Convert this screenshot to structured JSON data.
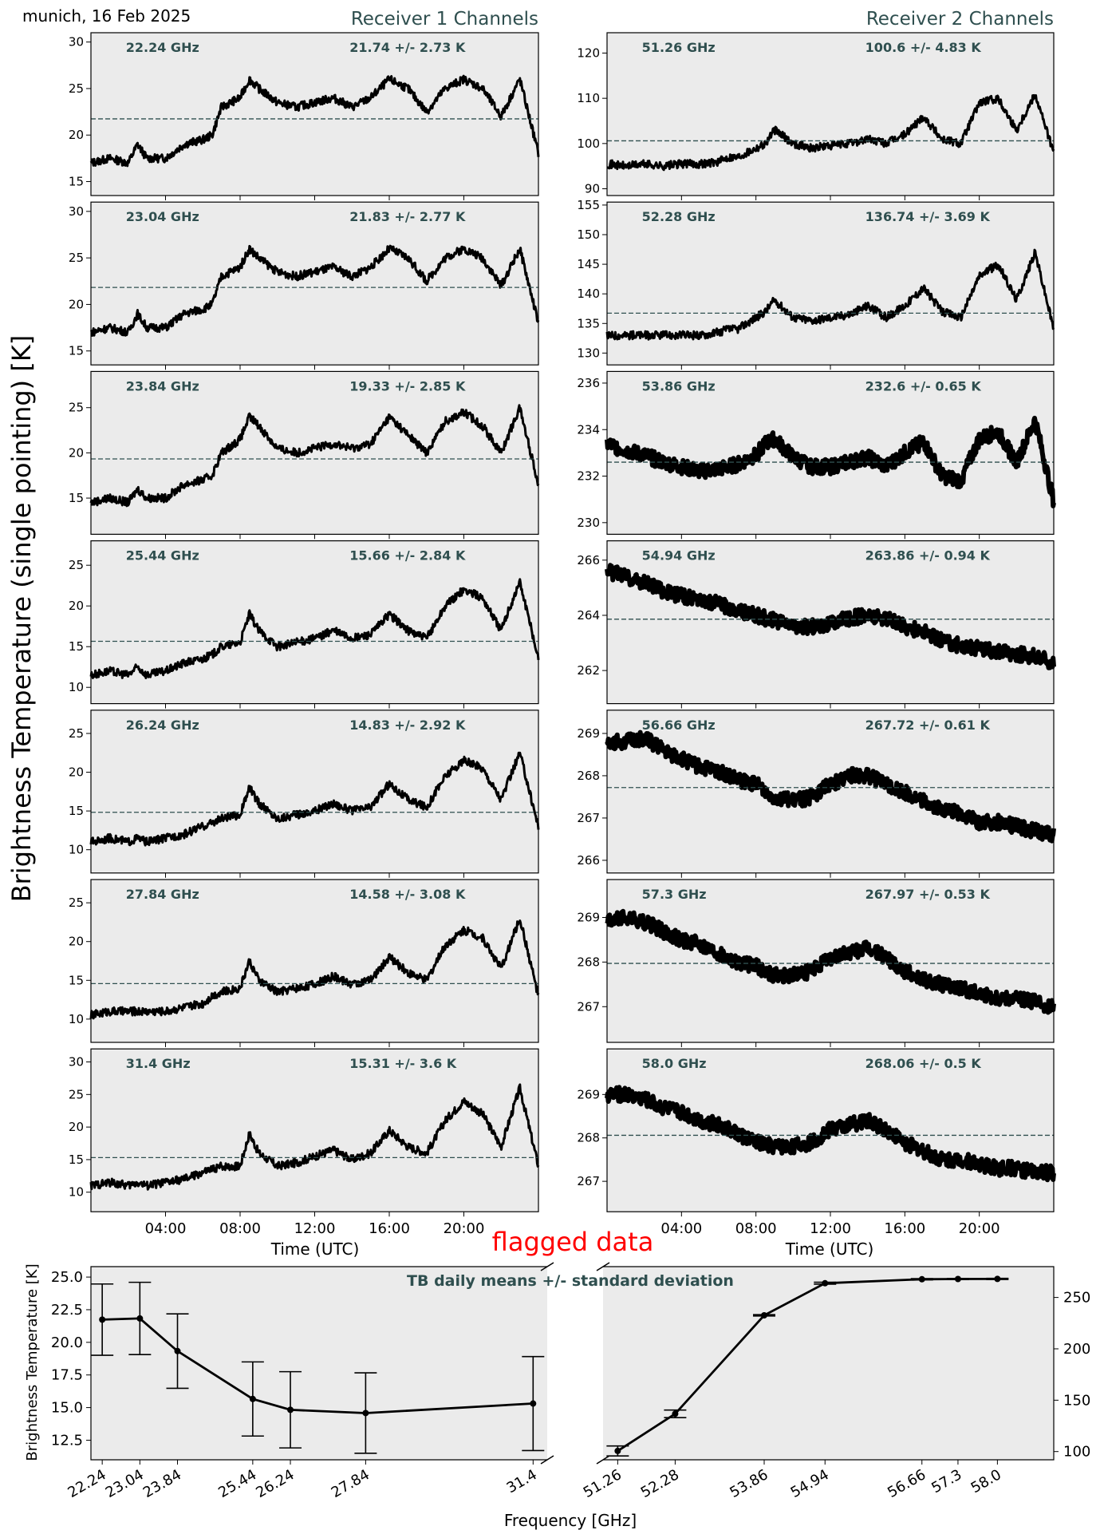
{
  "figure": {
    "header": "munich, 16 Feb 2025",
    "receiver1_title": "Receiver 1 Channels",
    "receiver2_title": "Receiver 2 Channels",
    "ylabel": "Brightness Temperature (single pointing) [K]",
    "time_xlabel": "Time (UTC)",
    "time_ticks": [
      "04:00",
      "08:00",
      "12:00",
      "16:00",
      "20:00"
    ],
    "flag_text": "flagged data",
    "summary_title": "TB daily means +/- standard deviation",
    "summary_ylabel": "Brightness Temperature [K]",
    "summary_xlabel": "Frequency [GHz]"
  },
  "colors": {
    "panel_bg": "#ebebeb",
    "series": "#000000",
    "mean_line": "#2f4f4f",
    "annotation": "#2f4f4f",
    "title": "#2f4f4f",
    "flag": "#ff0000"
  },
  "chart_data": [
    {
      "type": "line",
      "receiver": 1,
      "title": "22.24 GHz",
      "stat_label": "21.74 +/- 2.73 K",
      "mean": 21.74,
      "std": 2.73,
      "ylim": [
        13.5,
        31
      ],
      "yticks": [
        15,
        20,
        25,
        30
      ],
      "xlim": [
        0,
        24
      ],
      "series": {
        "x": [
          0,
          1,
          2,
          2.5,
          3,
          4,
          5,
          6,
          6.5,
          7,
          8,
          8.5,
          9,
          10,
          11,
          12,
          13,
          14,
          15,
          16,
          17,
          18,
          19,
          20,
          21,
          22,
          23,
          24
        ],
        "y": [
          17,
          17.5,
          17,
          19,
          17.5,
          17.5,
          19,
          19.5,
          20,
          23,
          24,
          26,
          25,
          23.5,
          23,
          23.5,
          24,
          23,
          24,
          26,
          25,
          22.5,
          25,
          26,
          25,
          22,
          26,
          18
        ]
      }
    },
    {
      "type": "line",
      "receiver": 1,
      "title": "23.04 GHz",
      "stat_label": "21.83 +/- 2.77 K",
      "mean": 21.83,
      "std": 2.77,
      "ylim": [
        13.5,
        31
      ],
      "yticks": [
        15,
        20,
        25,
        30
      ],
      "xlim": [
        0,
        24
      ],
      "series": {
        "x": [
          0,
          1,
          2,
          2.5,
          3,
          4,
          5,
          6,
          6.5,
          7,
          8,
          8.5,
          9,
          10,
          11,
          12,
          13,
          14,
          15,
          16,
          17,
          18,
          19,
          20,
          21,
          22,
          23,
          24
        ],
        "y": [
          17,
          17.5,
          17,
          19,
          17.5,
          17.5,
          19,
          19.5,
          20,
          23,
          24,
          26,
          25,
          23.5,
          23,
          23.5,
          24,
          23,
          24,
          26,
          25,
          22.5,
          25,
          26,
          25,
          22,
          26,
          18
        ]
      }
    },
    {
      "type": "line",
      "receiver": 1,
      "title": "23.84 GHz",
      "stat_label": "19.33 +/- 2.85 K",
      "mean": 19.33,
      "std": 2.85,
      "ylim": [
        11,
        29
      ],
      "yticks": [
        15,
        20,
        25
      ],
      "xlim": [
        0,
        24
      ],
      "series": {
        "x": [
          0,
          1,
          2,
          2.5,
          3,
          4,
          5,
          6,
          6.5,
          7,
          8,
          8.5,
          9,
          10,
          11,
          12,
          13,
          14,
          15,
          16,
          17,
          18,
          19,
          20,
          21,
          22,
          23,
          24
        ],
        "y": [
          14.5,
          15,
          14.5,
          16,
          15,
          15,
          16.5,
          17,
          17.5,
          20,
          21.5,
          24,
          23,
          20.5,
          20,
          20.5,
          21,
          20.5,
          21,
          24,
          22,
          20,
          23.5,
          24.5,
          23,
          20,
          25,
          16.5
        ]
      }
    },
    {
      "type": "line",
      "receiver": 1,
      "title": "25.44 GHz",
      "stat_label": "15.66 +/- 2.84 K",
      "mean": 15.66,
      "std": 2.84,
      "ylim": [
        8,
        28
      ],
      "yticks": [
        10,
        15,
        20,
        25
      ],
      "xlim": [
        0,
        24
      ],
      "series": {
        "x": [
          0,
          1,
          2,
          2.5,
          3,
          4,
          5,
          6,
          6.5,
          7,
          8,
          8.5,
          9,
          10,
          11,
          12,
          13,
          14,
          15,
          16,
          17,
          18,
          19,
          20,
          21,
          22,
          23,
          24
        ],
        "y": [
          11.5,
          12,
          11.5,
          12.5,
          11.5,
          12,
          13,
          13.5,
          14,
          15,
          15.5,
          19,
          17,
          15,
          15.5,
          16,
          17,
          16,
          16.5,
          19,
          17,
          16,
          20,
          22,
          21,
          17,
          23,
          13.5
        ]
      }
    },
    {
      "type": "line",
      "receiver": 1,
      "title": "26.24 GHz",
      "stat_label": "14.83 +/- 2.92 K",
      "mean": 14.83,
      "std": 2.92,
      "ylim": [
        7,
        28
      ],
      "yticks": [
        10,
        15,
        20,
        25
      ],
      "xlim": [
        0,
        24
      ],
      "series": {
        "x": [
          0,
          1,
          2,
          2.5,
          3,
          4,
          5,
          6,
          6.5,
          7,
          8,
          8.5,
          9,
          10,
          11,
          12,
          13,
          14,
          15,
          16,
          17,
          18,
          19,
          20,
          21,
          22,
          23,
          24
        ],
        "y": [
          11,
          11.5,
          11,
          11.5,
          11,
          11.5,
          12,
          13,
          13.5,
          14,
          14.5,
          18,
          16,
          14,
          14.5,
          15,
          16,
          15,
          15.5,
          18.5,
          16.5,
          15.5,
          19.5,
          21.5,
          20.5,
          16.5,
          22.5,
          13
        ]
      }
    },
    {
      "type": "line",
      "receiver": 1,
      "title": "27.84 GHz",
      "stat_label": "14.58 +/- 3.08 K",
      "mean": 14.58,
      "std": 3.08,
      "ylim": [
        7,
        28
      ],
      "yticks": [
        10,
        15,
        20,
        25
      ],
      "xlim": [
        0,
        24
      ],
      "series": {
        "x": [
          0,
          1,
          2,
          2.5,
          3,
          4,
          5,
          6,
          6.5,
          7,
          8,
          8.5,
          9,
          10,
          11,
          12,
          13,
          14,
          15,
          16,
          17,
          18,
          19,
          20,
          21,
          22,
          23,
          24
        ],
        "y": [
          10.5,
          11,
          11,
          11,
          11,
          11,
          11.5,
          12,
          13,
          13.5,
          14,
          17.5,
          15,
          13.5,
          14,
          14.5,
          15.5,
          14.5,
          15,
          18,
          16,
          15,
          19.5,
          21.5,
          20.5,
          16.5,
          23,
          13
        ]
      }
    },
    {
      "type": "line",
      "receiver": 1,
      "title": "31.4 GHz",
      "stat_label": "15.31 +/- 3.6 K",
      "mean": 15.31,
      "std": 3.6,
      "ylim": [
        7,
        32
      ],
      "yticks": [
        10,
        15,
        20,
        25,
        30
      ],
      "xlim": [
        0,
        24
      ],
      "series": {
        "x": [
          0,
          1,
          2,
          2.5,
          3,
          4,
          5,
          6,
          6.5,
          7,
          8,
          8.5,
          9,
          10,
          11,
          12,
          13,
          14,
          15,
          16,
          17,
          18,
          19,
          20,
          21,
          22,
          23,
          24
        ],
        "y": [
          11,
          11.5,
          11,
          11.5,
          11,
          11.5,
          12,
          13,
          13.5,
          14,
          14,
          19,
          16,
          14,
          14.5,
          15.5,
          16.5,
          15,
          16,
          19.5,
          17,
          16,
          21,
          24,
          22,
          17,
          26,
          14
        ]
      }
    },
    {
      "type": "line",
      "receiver": 2,
      "title": "51.26 GHz",
      "stat_label": "100.6 +/- 4.83 K",
      "mean": 100.6,
      "std": 4.83,
      "ylim": [
        88.5,
        124.5
      ],
      "yticks": [
        90,
        100,
        110,
        120
      ],
      "xlim": [
        0,
        24
      ],
      "series": {
        "x": [
          0,
          1,
          2,
          3,
          4,
          5,
          6,
          6.5,
          7,
          8,
          8.5,
          9,
          10,
          11,
          12,
          13,
          14,
          15,
          16,
          17,
          18,
          19,
          20,
          21,
          22,
          23,
          24
        ],
        "y": [
          95.5,
          95,
          95.5,
          95,
          95.5,
          95.5,
          96,
          97,
          97,
          99,
          100,
          103,
          100,
          99,
          99.5,
          100,
          101,
          100,
          102,
          106,
          101,
          100,
          109,
          110,
          103,
          111,
          98
        ]
      }
    },
    {
      "type": "line",
      "receiver": 2,
      "title": "52.28 GHz",
      "stat_label": "136.74 +/- 3.69 K",
      "mean": 136.74,
      "std": 3.69,
      "ylim": [
        128,
        155.5
      ],
      "yticks": [
        130,
        135,
        140,
        145,
        150,
        155
      ],
      "xlim": [
        0,
        24
      ],
      "series": {
        "x": [
          0,
          1,
          2,
          3,
          4,
          5,
          6,
          6.5,
          7,
          8,
          8.5,
          9,
          10,
          11,
          12,
          13,
          14,
          15,
          16,
          17,
          18,
          19,
          20,
          21,
          22,
          23,
          24
        ],
        "y": [
          133,
          133,
          133,
          133,
          133,
          133,
          133.5,
          134,
          134,
          136,
          137,
          139,
          136,
          135.5,
          136,
          136.5,
          138,
          136,
          138,
          141,
          137,
          136,
          143,
          145,
          139,
          147,
          134
        ]
      }
    },
    {
      "type": "line",
      "receiver": 2,
      "title": "53.86 GHz",
      "stat_label": "232.6 +/- 0.65 K",
      "mean": 232.6,
      "std": 0.65,
      "ylim": [
        229.5,
        236.5
      ],
      "yticks": [
        230,
        232,
        234,
        236
      ],
      "xlim": [
        0,
        24
      ],
      "series": {
        "x": [
          0,
          1,
          2,
          3,
          4,
          5,
          6,
          7,
          8,
          8.5,
          9,
          10,
          11,
          12,
          13,
          14,
          15,
          16,
          17,
          18,
          19,
          20,
          21,
          22,
          23,
          24
        ],
        "y": [
          233.4,
          233.1,
          232.9,
          232.6,
          232.4,
          232.2,
          232.3,
          232.5,
          232.9,
          233.4,
          233.6,
          232.8,
          232.4,
          232.4,
          232.6,
          232.8,
          232.4,
          233.0,
          233.5,
          232.0,
          231.8,
          233.6,
          233.9,
          232.6,
          234.4,
          230.9
        ]
      }
    },
    {
      "type": "line",
      "receiver": 2,
      "title": "54.94 GHz",
      "stat_label": "263.86 +/- 0.94 K",
      "mean": 263.86,
      "std": 0.94,
      "ylim": [
        260.8,
        266.7
      ],
      "yticks": [
        262,
        264,
        266
      ],
      "xlim": [
        0,
        24
      ],
      "series": {
        "x": [
          0,
          1,
          2,
          3,
          4,
          5,
          6,
          7,
          8,
          9,
          10,
          11,
          12,
          13,
          14,
          15,
          16,
          17,
          18,
          19,
          20,
          21,
          22,
          23,
          24
        ],
        "y": [
          265.6,
          265.4,
          265.2,
          264.9,
          264.7,
          264.6,
          264.4,
          264.2,
          264.0,
          263.8,
          263.6,
          263.6,
          263.7,
          263.9,
          264.0,
          263.9,
          263.6,
          263.4,
          263.1,
          262.9,
          262.8,
          262.7,
          262.6,
          262.5,
          262.3
        ]
      }
    },
    {
      "type": "line",
      "receiver": 2,
      "title": "56.66 GHz",
      "stat_label": "267.72 +/- 0.61 K",
      "mean": 267.72,
      "std": 0.61,
      "ylim": [
        265.7,
        269.55
      ],
      "yticks": [
        266,
        267,
        268,
        269
      ],
      "xlim": [
        0,
        24
      ],
      "series": {
        "x": [
          0,
          1,
          2,
          3,
          4,
          5,
          6,
          7,
          8,
          9,
          10,
          11,
          12,
          13,
          14,
          15,
          16,
          17,
          18,
          19,
          20,
          21,
          22,
          23,
          24
        ],
        "y": [
          268.8,
          268.8,
          268.9,
          268.6,
          268.4,
          268.2,
          268.1,
          267.9,
          267.8,
          267.5,
          267.4,
          267.5,
          267.8,
          268.0,
          268.0,
          267.8,
          267.6,
          267.4,
          267.2,
          267.1,
          266.9,
          266.9,
          266.8,
          266.7,
          266.6
        ]
      }
    },
    {
      "type": "line",
      "receiver": 2,
      "title": "57.3 GHz",
      "stat_label": "267.97 +/- 0.53 K",
      "mean": 267.97,
      "std": 0.53,
      "ylim": [
        266.2,
        269.85
      ],
      "yticks": [
        267,
        268,
        269
      ],
      "xlim": [
        0,
        24
      ],
      "series": {
        "x": [
          0,
          1,
          2,
          3,
          4,
          5,
          6,
          7,
          8,
          9,
          10,
          11,
          12,
          13,
          14,
          15,
          16,
          17,
          18,
          19,
          20,
          21,
          22,
          23,
          24
        ],
        "y": [
          268.9,
          269.0,
          268.9,
          268.7,
          268.5,
          268.4,
          268.2,
          268.0,
          267.9,
          267.7,
          267.7,
          267.8,
          268.1,
          268.2,
          268.3,
          268.1,
          267.8,
          267.6,
          267.5,
          267.4,
          267.3,
          267.2,
          267.2,
          267.1,
          267.0
        ]
      }
    },
    {
      "type": "line",
      "receiver": 2,
      "title": "58.0 GHz",
      "stat_label": "268.06 +/- 0.5 K",
      "mean": 268.06,
      "std": 0.5,
      "ylim": [
        266.3,
        270.05
      ],
      "yticks": [
        267,
        268,
        269
      ],
      "xlim": [
        0,
        24
      ],
      "series": {
        "x": [
          0,
          1,
          2,
          3,
          4,
          5,
          6,
          7,
          8,
          9,
          10,
          11,
          12,
          13,
          14,
          15,
          16,
          17,
          18,
          19,
          20,
          21,
          22,
          23,
          24
        ],
        "y": [
          269.0,
          269.0,
          268.9,
          268.7,
          268.6,
          268.4,
          268.3,
          268.1,
          267.9,
          267.8,
          267.8,
          267.9,
          268.2,
          268.3,
          268.4,
          268.2,
          267.9,
          267.7,
          267.5,
          267.5,
          267.4,
          267.3,
          267.3,
          267.2,
          267.2
        ]
      }
    },
    {
      "type": "line",
      "title": "TB daily means +/- standard deviation",
      "xlabel": "Frequency [GHz]",
      "ylabel": "Brightness Temperature [K]",
      "left": {
        "categories": [
          "22.24",
          "23.04",
          "23.84",
          "25.44",
          "26.24",
          "27.84",
          "31.4"
        ],
        "x": [
          22.24,
          23.04,
          23.84,
          25.44,
          26.24,
          27.84,
          31.4
        ],
        "values": [
          21.74,
          21.83,
          19.33,
          15.66,
          14.83,
          14.58,
          15.31
        ],
        "std": [
          2.73,
          2.77,
          2.85,
          2.84,
          2.92,
          3.08,
          3.6
        ],
        "xlim": [
          22.0,
          31.7
        ],
        "ylim": [
          11.0,
          25.8
        ],
        "yticks": [
          "12.5",
          "15.0",
          "17.5",
          "20.0",
          "22.5",
          "25.0"
        ]
      },
      "right": {
        "categories": [
          "51.26",
          "52.28",
          "53.86",
          "54.94",
          "56.66",
          "57.3",
          "58.0"
        ],
        "x": [
          51.26,
          52.28,
          53.86,
          54.94,
          56.66,
          57.3,
          58.0
        ],
        "values": [
          100.6,
          136.74,
          232.6,
          263.86,
          267.72,
          267.97,
          268.06
        ],
        "std": [
          4.83,
          3.69,
          0.65,
          0.94,
          0.61,
          0.53,
          0.5
        ],
        "xlim": [
          51.0,
          59.0
        ],
        "ylim": [
          92,
          280
        ],
        "yticks": [
          "100",
          "150",
          "200",
          "250"
        ]
      }
    }
  ]
}
